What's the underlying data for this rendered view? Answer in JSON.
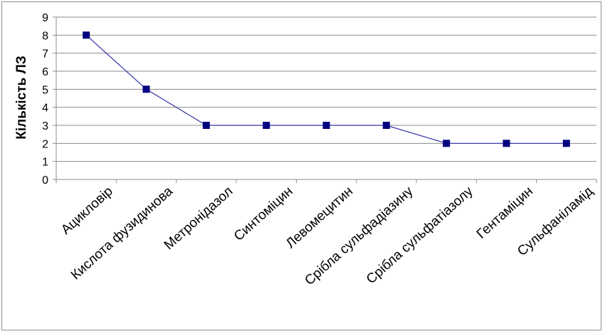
{
  "chart_data": {
    "type": "line",
    "title": "",
    "xlabel": "",
    "ylabel": "Кількість ЛЗ",
    "ylim": [
      0,
      9
    ],
    "yticks": [
      "0",
      "1",
      "2",
      "3",
      "4",
      "5",
      "6",
      "7",
      "8",
      "9"
    ],
    "grid": true,
    "legend": "none",
    "categories": [
      "Ацикловір",
      "Кислота фузидинова",
      "Метронідазол",
      "Синтоміцин",
      "Левомецитин",
      "Срібла сульфадіазину",
      "Срібла сульфатіазолу",
      "Гентаміцин",
      "Сульфаніламід"
    ],
    "series": [
      {
        "values": [
          8,
          5,
          3,
          3,
          3,
          3,
          2,
          2,
          2
        ]
      }
    ],
    "colors": {
      "line": "#3333aa",
      "marker": "#000080",
      "grid": "#8c8c8c",
      "axis": "#8c8c8c"
    }
  }
}
